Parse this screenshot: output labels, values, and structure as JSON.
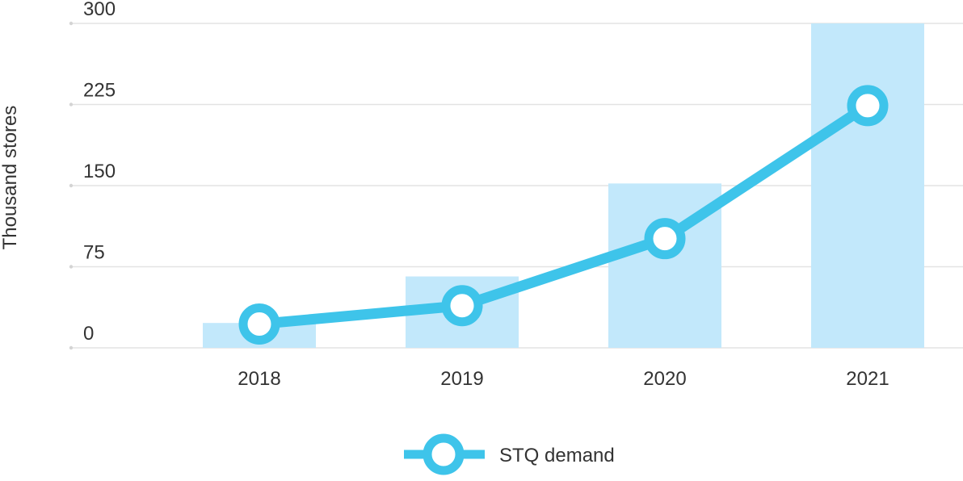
{
  "chart_data": {
    "type": "bar",
    "categories": [
      "2018",
      "2019",
      "2020",
      "2021"
    ],
    "bar_values": [
      23,
      66,
      152,
      300
    ],
    "line_series": {
      "name": "STQ demand",
      "values": [
        22,
        39,
        101,
        224
      ]
    },
    "ylabel": "Thousand stores",
    "ylim": [
      0,
      300
    ],
    "yticks": [
      0,
      75,
      150,
      225,
      300
    ],
    "grid": true,
    "legend_position": "bottom-center",
    "colors": {
      "bar": "#c2e8fb",
      "line": "#3ec4ea",
      "marker_fill": "#ffffff",
      "grid": "#e3e3e3",
      "text": "#333333"
    }
  }
}
